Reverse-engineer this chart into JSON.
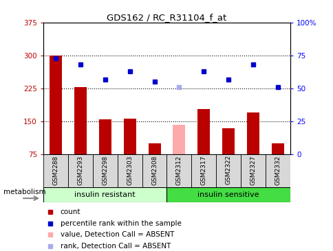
{
  "title": "GDS162 / RC_R31104_f_at",
  "samples": [
    "GSM2288",
    "GSM2293",
    "GSM2298",
    "GSM2303",
    "GSM2308",
    "GSM2312",
    "GSM2317",
    "GSM2322",
    "GSM2327",
    "GSM2332"
  ],
  "bar_values": [
    300,
    228,
    155,
    157,
    100,
    142,
    178,
    135,
    170,
    100
  ],
  "bar_colors": [
    "#bb0000",
    "#bb0000",
    "#bb0000",
    "#bb0000",
    "#bb0000",
    "#ffaaaa",
    "#bb0000",
    "#bb0000",
    "#bb0000",
    "#bb0000"
  ],
  "rank_values": [
    73,
    68,
    57,
    63,
    55,
    51,
    63,
    57,
    68,
    51
  ],
  "rank_colors": [
    "#0000cc",
    "#0000cc",
    "#0000cc",
    "#0000cc",
    "#0000cc",
    "#aaaaee",
    "#0000cc",
    "#0000cc",
    "#0000cc",
    "#0000cc"
  ],
  "ylim_left": [
    75,
    375
  ],
  "ylim_right": [
    0,
    100
  ],
  "yticks_left": [
    75,
    150,
    225,
    300,
    375
  ],
  "ytick_labels_left": [
    "75",
    "150",
    "225",
    "300",
    "375"
  ],
  "yticks_right": [
    0,
    25,
    50,
    75,
    100
  ],
  "ytick_labels_right": [
    "0",
    "25",
    "50",
    "75",
    "100%"
  ],
  "hlines": [
    150,
    225,
    300
  ],
  "group1_label": "insulin resistant",
  "group2_label": "insulin sensitive",
  "group1_color": "#ccffcc",
  "group2_color": "#44dd44",
  "metabolism_label": "metabolism",
  "legend_items": [
    {
      "label": "count",
      "color": "#bb0000"
    },
    {
      "label": "percentile rank within the sample",
      "color": "#0000cc"
    },
    {
      "label": "value, Detection Call = ABSENT",
      "color": "#ffaaaa"
    },
    {
      "label": "rank, Detection Call = ABSENT",
      "color": "#aaaaee"
    }
  ],
  "plot_bg": "#ffffff",
  "bar_width": 0.5
}
